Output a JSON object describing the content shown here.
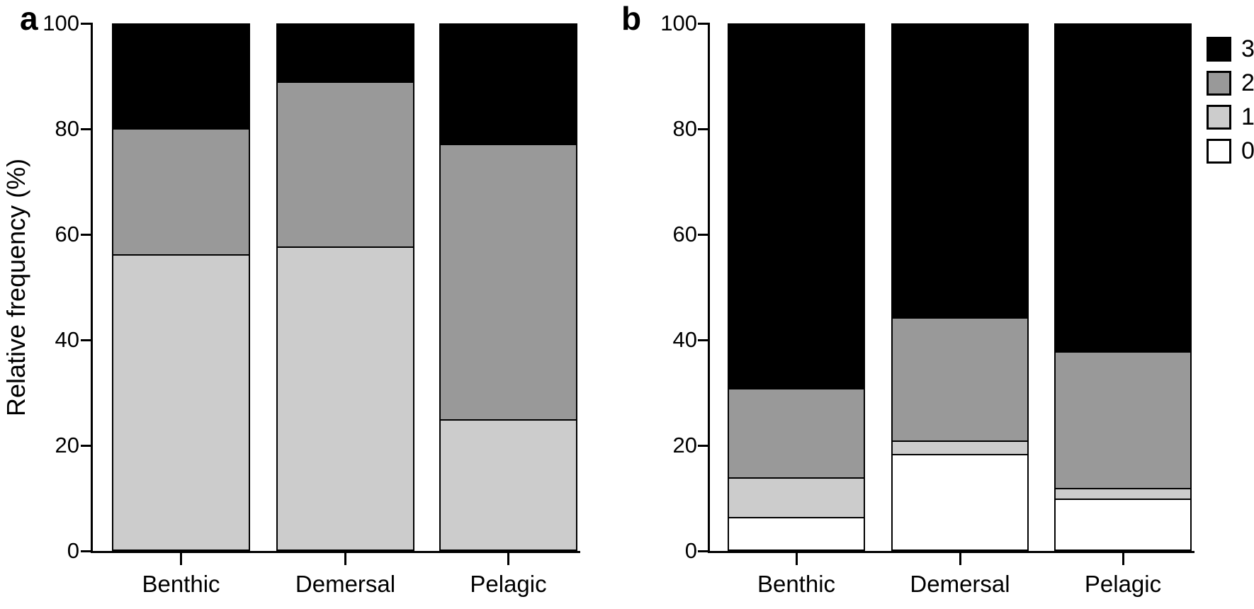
{
  "figure": {
    "background": "#FFFFFF",
    "axis_color": "#000000",
    "level_colors": {
      "0": "#FFFFFF",
      "1": "#CCCCCC",
      "2": "#999999",
      "3": "#000000"
    }
  },
  "chart_data": [
    {
      "type": "bar",
      "stacked": true,
      "panel_label": "a",
      "title": "",
      "xlabel": "",
      "ylabel": "Relative frequency (%)",
      "ylim": [
        0,
        100
      ],
      "yticks": [
        0,
        20,
        40,
        60,
        80,
        100
      ],
      "grid": false,
      "categories": [
        "Benthic",
        "Demersal",
        "Pelagic"
      ],
      "series": [
        {
          "name": "0",
          "color": "#FFFFFF",
          "values": [
            0,
            0,
            0
          ]
        },
        {
          "name": "1",
          "color": "#CCCCCC",
          "values": [
            56,
            57.5,
            24.5
          ]
        },
        {
          "name": "2",
          "color": "#999999",
          "values": [
            24,
            31.5,
            52.5
          ]
        },
        {
          "name": "3",
          "color": "#000000",
          "values": [
            20,
            11,
            23
          ]
        }
      ]
    },
    {
      "type": "bar",
      "stacked": true,
      "panel_label": "b",
      "title": "",
      "xlabel": "",
      "ylabel": "",
      "ylim": [
        0,
        100
      ],
      "yticks": [
        0,
        20,
        40,
        60,
        80,
        100
      ],
      "grid": false,
      "categories": [
        "Benthic",
        "Demersal",
        "Pelagic"
      ],
      "series": [
        {
          "name": "0",
          "color": "#FFFFFF",
          "values": [
            6,
            18,
            9.5
          ]
        },
        {
          "name": "1",
          "color": "#CCCCCC",
          "values": [
            7.5,
            2.5,
            2
          ]
        },
        {
          "name": "2",
          "color": "#999999",
          "values": [
            17,
            23.5,
            26
          ]
        },
        {
          "name": "3",
          "color": "#000000",
          "values": [
            69.5,
            56,
            62.5
          ]
        }
      ],
      "legend": {
        "position": "right",
        "entries": [
          {
            "label": "3",
            "color": "#000000"
          },
          {
            "label": "2",
            "color": "#999999"
          },
          {
            "label": "1",
            "color": "#CCCCCC"
          },
          {
            "label": "0",
            "color": "#FFFFFF"
          }
        ]
      }
    }
  ]
}
